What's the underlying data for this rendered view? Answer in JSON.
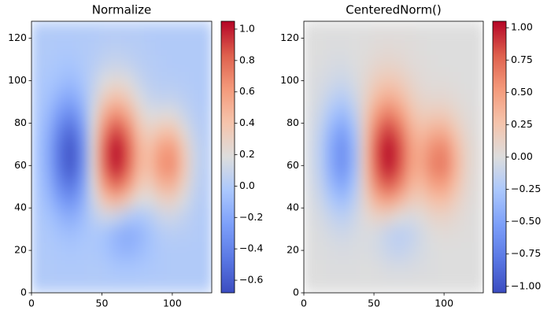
{
  "chart_data": [
    {
      "type": "heatmap",
      "title": "Normalize",
      "cmap": "coolwarm",
      "clim": [
        -0.68,
        1.05
      ],
      "cticks": [
        {
          "value": -0.6,
          "label": "−0.6"
        },
        {
          "value": -0.4,
          "label": "−0.4"
        },
        {
          "value": -0.2,
          "label": "−0.2"
        },
        {
          "value": 0,
          "label": "0.0"
        },
        0.2,
        0.4,
        0.6,
        0.8,
        {
          "value": 1,
          "label": "1.0"
        }
      ],
      "xlim": [
        0,
        128
      ],
      "ylim": [
        0,
        128
      ],
      "xticks": [
        0,
        50,
        100
      ],
      "yticks": [
        0,
        20,
        40,
        60,
        80,
        100,
        120
      ],
      "z": [
        [
          0,
          0,
          0,
          0,
          0,
          0,
          0,
          0,
          0,
          0,
          0,
          0,
          0,
          0,
          0,
          0
        ],
        [
          0,
          0,
          -0.01,
          -0.01,
          -0.01,
          0,
          -0.01,
          -0.03,
          -0.04,
          -0.03,
          -0.02,
          -0.01,
          0,
          0,
          0,
          0
        ],
        [
          0,
          -0.01,
          -0.02,
          -0.03,
          -0.02,
          -0.02,
          -0.05,
          -0.11,
          -0.14,
          -0.1,
          -0.05,
          -0.01,
          0,
          0,
          0,
          0
        ],
        [
          0,
          -0.02,
          -0.06,
          -0.08,
          -0.05,
          -0.02,
          -0.05,
          -0.13,
          -0.18,
          -0.14,
          -0.06,
          0.01,
          0.03,
          0.02,
          0.01,
          0
        ],
        [
          -0.01,
          -0.05,
          -0.13,
          -0.18,
          -0.1,
          0.04,
          0.12,
          0.1,
          0.01,
          -0.03,
          0.02,
          0.1,
          0.12,
          0.07,
          0.02,
          0
        ],
        [
          -0.02,
          -0.1,
          -0.25,
          -0.33,
          -0.18,
          0.12,
          0.39,
          0.48,
          0.36,
          0.2,
          0.18,
          0.28,
          0.3,
          0.17,
          0.05,
          0.01
        ],
        [
          -0.03,
          -0.15,
          -0.38,
          -0.5,
          -0.27,
          0.2,
          0.64,
          0.82,
          0.66,
          0.39,
          0.34,
          0.5,
          0.52,
          0.3,
          0.09,
          0.01
        ],
        [
          -0.04,
          -0.18,
          -0.47,
          -0.63,
          -0.34,
          0.24,
          0.78,
          1.01,
          0.82,
          0.49,
          0.44,
          0.64,
          0.67,
          0.38,
          0.11,
          0.02
        ],
        [
          -0.04,
          -0.19,
          -0.48,
          -0.64,
          -0.35,
          0.24,
          0.8,
          1.04,
          0.84,
          0.5,
          0.42,
          0.59,
          0.62,
          0.35,
          0.11,
          0.02
        ],
        [
          -0.03,
          -0.16,
          -0.41,
          -0.54,
          -0.29,
          0.22,
          0.69,
          0.9,
          0.73,
          0.42,
          0.31,
          0.4,
          0.41,
          0.23,
          0.07,
          0.01
        ],
        [
          -0.02,
          -0.11,
          -0.28,
          -0.37,
          -0.19,
          0.17,
          0.52,
          0.67,
          0.54,
          0.3,
          0.18,
          0.2,
          0.2,
          0.11,
          0.03,
          0.01
        ],
        [
          -0.01,
          -0.06,
          -0.16,
          -0.21,
          -0.1,
          0.11,
          0.32,
          0.42,
          0.34,
          0.18,
          0.09,
          0.07,
          0.07,
          0.04,
          0.01,
          0
        ],
        [
          -0.01,
          -0.03,
          -0.07,
          -0.1,
          -0.04,
          0.07,
          0.18,
          0.23,
          0.19,
          0.1,
          0.04,
          0.02,
          0.02,
          0.01,
          0,
          0
        ],
        [
          0,
          -0.01,
          -0.03,
          -0.04,
          -0.01,
          0.03,
          0.08,
          0.1,
          0.08,
          0.04,
          0.02,
          0.01,
          0,
          0,
          0,
          0
        ],
        [
          0,
          0,
          -0.01,
          -0.01,
          0,
          0.01,
          0.03,
          0.04,
          0.03,
          0.02,
          0.01,
          0,
          0,
          0,
          0,
          0
        ],
        [
          0,
          0,
          0,
          0,
          0,
          0,
          0.01,
          0.01,
          0.01,
          0.01,
          0,
          0,
          0,
          0,
          0,
          0
        ]
      ]
    },
    {
      "type": "heatmap",
      "title": "CenteredNorm()",
      "cmap": "coolwarm",
      "clim": [
        -1.05,
        1.05
      ],
      "cticks": [
        {
          "value": -1,
          "label": "−1.00"
        },
        {
          "value": -0.75,
          "label": "−0.75"
        },
        {
          "value": -0.5,
          "label": "−0.50"
        },
        {
          "value": -0.25,
          "label": "−0.25"
        },
        {
          "value": 0,
          "label": "0.00"
        },
        0.25,
        {
          "value": 0.5,
          "label": "0.50"
        },
        0.75,
        {
          "value": 1,
          "label": "1.00"
        }
      ],
      "xlim": [
        0,
        128
      ],
      "ylim": [
        0,
        128
      ],
      "xticks": [
        0,
        50,
        100
      ],
      "yticks": [
        0,
        20,
        40,
        60,
        80,
        100,
        120
      ],
      "z": [
        [
          0,
          0,
          0,
          0,
          0,
          0,
          0,
          0,
          0,
          0,
          0,
          0,
          0,
          0,
          0,
          0
        ],
        [
          0,
          0,
          -0.01,
          -0.01,
          -0.01,
          0,
          -0.01,
          -0.03,
          -0.04,
          -0.03,
          -0.02,
          -0.01,
          0,
          0,
          0,
          0
        ],
        [
          0,
          -0.01,
          -0.02,
          -0.03,
          -0.02,
          -0.02,
          -0.05,
          -0.11,
          -0.14,
          -0.1,
          -0.05,
          -0.01,
          0,
          0,
          0,
          0
        ],
        [
          0,
          -0.02,
          -0.06,
          -0.08,
          -0.05,
          -0.02,
          -0.05,
          -0.13,
          -0.18,
          -0.14,
          -0.06,
          0.01,
          0.03,
          0.02,
          0.01,
          0
        ],
        [
          -0.01,
          -0.05,
          -0.13,
          -0.18,
          -0.1,
          0.04,
          0.12,
          0.1,
          0.01,
          -0.03,
          0.02,
          0.1,
          0.12,
          0.07,
          0.02,
          0
        ],
        [
          -0.02,
          -0.1,
          -0.25,
          -0.33,
          -0.18,
          0.12,
          0.39,
          0.48,
          0.36,
          0.2,
          0.18,
          0.28,
          0.3,
          0.17,
          0.05,
          0.01
        ],
        [
          -0.03,
          -0.15,
          -0.38,
          -0.5,
          -0.27,
          0.2,
          0.64,
          0.82,
          0.66,
          0.39,
          0.34,
          0.5,
          0.52,
          0.3,
          0.09,
          0.01
        ],
        [
          -0.04,
          -0.18,
          -0.47,
          -0.63,
          -0.34,
          0.24,
          0.78,
          1.01,
          0.82,
          0.49,
          0.44,
          0.64,
          0.67,
          0.38,
          0.11,
          0.02
        ],
        [
          -0.04,
          -0.19,
          -0.48,
          -0.64,
          -0.35,
          0.24,
          0.8,
          1.04,
          0.84,
          0.5,
          0.42,
          0.59,
          0.62,
          0.35,
          0.11,
          0.02
        ],
        [
          -0.03,
          -0.16,
          -0.41,
          -0.54,
          -0.29,
          0.22,
          0.69,
          0.9,
          0.73,
          0.42,
          0.31,
          0.4,
          0.41,
          0.23,
          0.07,
          0.01
        ],
        [
          -0.02,
          -0.11,
          -0.28,
          -0.37,
          -0.19,
          0.17,
          0.52,
          0.67,
          0.54,
          0.3,
          0.18,
          0.2,
          0.2,
          0.11,
          0.03,
          0.01
        ],
        [
          -0.01,
          -0.06,
          -0.16,
          -0.21,
          -0.1,
          0.11,
          0.32,
          0.42,
          0.34,
          0.18,
          0.09,
          0.07,
          0.07,
          0.04,
          0.01,
          0
        ],
        [
          -0.01,
          -0.03,
          -0.07,
          -0.1,
          -0.04,
          0.07,
          0.18,
          0.23,
          0.19,
          0.1,
          0.04,
          0.02,
          0.02,
          0.01,
          0,
          0
        ],
        [
          0,
          -0.01,
          -0.03,
          -0.04,
          -0.01,
          0.03,
          0.08,
          0.1,
          0.08,
          0.04,
          0.02,
          0.01,
          0,
          0,
          0,
          0
        ],
        [
          0,
          0,
          -0.01,
          -0.01,
          0,
          0.01,
          0.03,
          0.04,
          0.03,
          0.02,
          0.01,
          0,
          0,
          0,
          0,
          0
        ],
        [
          0,
          0,
          0,
          0,
          0,
          0,
          0.01,
          0.01,
          0.01,
          0.01,
          0,
          0,
          0,
          0,
          0,
          0
        ]
      ]
    }
  ]
}
